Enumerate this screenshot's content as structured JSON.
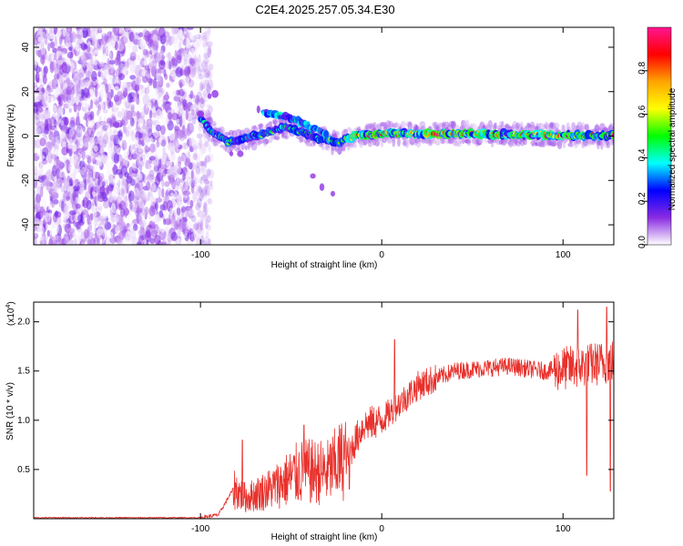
{
  "title": "C2E4.2025.257.05.34.E30",
  "colors": {
    "snr_line": "#e8312c",
    "frame": "#000000",
    "background": "#ffffff"
  },
  "chart_data": [
    {
      "type": "heatmap",
      "name": "spectrogram",
      "xlabel": "Height of straight line (km)",
      "ylabel": "Frequency (Hz)",
      "xlim": [
        -192,
        128
      ],
      "ylim": [
        -49,
        49
      ],
      "x_ticks": [
        -100,
        0,
        100
      ],
      "x_tick_labels": [
        "-100",
        "0",
        "100"
      ],
      "y_ticks": [
        -40,
        -20,
        0,
        20,
        40
      ],
      "y_tick_labels": [
        "-40",
        "-20",
        "0",
        "20",
        "40"
      ],
      "noise_region_x": [
        -192,
        -100
      ],
      "signal": [
        {
          "x": -100,
          "f": 8
        },
        {
          "x": -95,
          "f": 3
        },
        {
          "x": -85,
          "f": -3
        },
        {
          "x": -75,
          "f": -1
        },
        {
          "x": -65,
          "f": 1
        },
        {
          "x": -55,
          "f": 4
        },
        {
          "x": -45,
          "f": 2
        },
        {
          "x": -35,
          "f": -1
        },
        {
          "x": -25,
          "f": -3
        },
        {
          "x": -15,
          "f": 0
        },
        {
          "x": 0,
          "f": 1
        },
        {
          "x": 50,
          "f": 1
        },
        {
          "x": 128,
          "f": 0
        }
      ],
      "upper_branch": [
        {
          "x": -65,
          "f": 11
        },
        {
          "x": -50,
          "f": 8
        },
        {
          "x": -40,
          "f": 4
        },
        {
          "x": -30,
          "f": 1
        }
      ],
      "colorbar": {
        "label": "Normalized spectral amplitude",
        "range": [
          0.0,
          1.0
        ],
        "ticks": [
          0.0,
          0.2,
          0.4,
          0.6,
          0.8
        ],
        "tick_labels": [
          "0.0",
          "0.2",
          "0.4",
          "0.6",
          "0.8"
        ],
        "stops": [
          "#ffffff",
          "#8a2be2",
          "#0000ff",
          "#00ffff",
          "#00ff00",
          "#ffff00",
          "#ffa500",
          "#ff0000",
          "#ff1493"
        ]
      }
    },
    {
      "type": "line",
      "name": "snr",
      "xlabel": "Height of straight line (km)",
      "ylabel": "SNR (10 * v/v)",
      "exponent_label": "(x10",
      "exponent_power": "4",
      "exponent_close": ")",
      "xlim": [
        -192,
        128
      ],
      "ylim": [
        0.0,
        2.2
      ],
      "x_ticks": [
        -100,
        0,
        100
      ],
      "x_tick_labels": [
        "-100",
        "0",
        "100"
      ],
      "y_ticks": [
        0.5,
        1.0,
        1.5,
        2.0
      ],
      "y_tick_labels": [
        "0.5",
        "1.0",
        "1.5",
        "2.0"
      ],
      "envelope": [
        {
          "x": -192,
          "y": 0.01
        },
        {
          "x": -100,
          "y": 0.01
        },
        {
          "x": -90,
          "y": 0.04
        },
        {
          "x": -82,
          "y": 0.3
        },
        {
          "x": -75,
          "y": 0.2
        },
        {
          "x": -60,
          "y": 0.3
        },
        {
          "x": -45,
          "y": 0.45
        },
        {
          "x": -30,
          "y": 0.45
        },
        {
          "x": -20,
          "y": 0.6
        },
        {
          "x": -10,
          "y": 0.95
        },
        {
          "x": 0,
          "y": 1.0
        },
        {
          "x": 20,
          "y": 1.35
        },
        {
          "x": 40,
          "y": 1.5
        },
        {
          "x": 70,
          "y": 1.55
        },
        {
          "x": 90,
          "y": 1.5
        },
        {
          "x": 110,
          "y": 1.55
        },
        {
          "x": 128,
          "y": 1.6
        }
      ],
      "peaks": [
        {
          "x": -77,
          "y": 0.8
        },
        {
          "x": -43,
          "y": 0.95
        },
        {
          "x": -18,
          "y": 0.3
        },
        {
          "x": 7,
          "y": 1.82
        },
        {
          "x": 108,
          "y": 2.12
        },
        {
          "x": 113,
          "y": 0.44
        },
        {
          "x": 124,
          "y": 2.15
        },
        {
          "x": 126,
          "y": 0.28
        }
      ]
    }
  ]
}
